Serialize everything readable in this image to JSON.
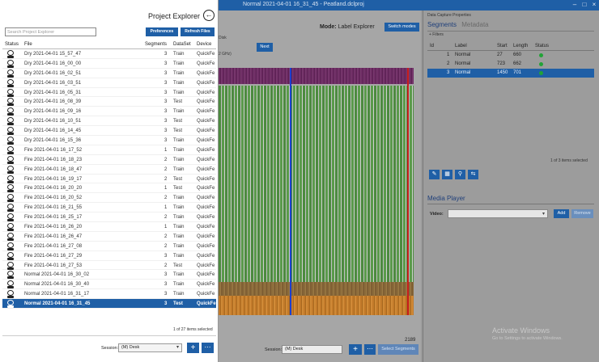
{
  "window": {
    "title": "Normal 2021-04-01 16_31_45 - Peatland.dclproj"
  },
  "center": {
    "disk_label": "Disk",
    "ghz_label": "2 GHz)",
    "next_label": "Next",
    "mode_prefix": "Mode:",
    "mode_value": "Label Explorer",
    "switch_label": "Switch modes",
    "sample_count": "2189",
    "session_label": "Session:",
    "session_value": "(M) Desk",
    "select_segments_label": "Select Segments"
  },
  "right_pane": {
    "title": "Data Capture Properties",
    "tab_segments": "Segments",
    "tab_metadata": "Metadata",
    "filters_label": "+ Filters",
    "headers": {
      "id": "Id",
      "label": "Label",
      "start": "Start",
      "length": "Length",
      "status": "Status"
    },
    "rows": [
      {
        "id": "1",
        "label": "Normal",
        "start": "27",
        "length": "660"
      },
      {
        "id": "2",
        "label": "Normal",
        "start": "723",
        "length": "662"
      },
      {
        "id": "3",
        "label": "Normal",
        "start": "1450",
        "length": "701"
      }
    ],
    "status_color": "#21a336",
    "items_selected": "1 of 3 items selected",
    "media_player_title": "Media Player",
    "video_label": "Video:",
    "add_label": "Add",
    "remove_label": "Remove",
    "activate_title": "Activate Windows",
    "activate_sub": "Go to Settings to activate Windows."
  },
  "explorer": {
    "title": "Project Explorer",
    "search_placeholder": "Search Project Explorer",
    "preferences_label": "Preferences",
    "refresh_label": "Refresh Files",
    "headers": {
      "status": "Status",
      "file": "File",
      "segments": "Segments",
      "dataset": "DataSet",
      "device": "Device"
    },
    "files": [
      {
        "name": "Dry 2021-04-01 15_57_47",
        "segments": "3",
        "dataset": "Train",
        "device": "QuickFe"
      },
      {
        "name": "Dry 2021-04-01 16_00_00",
        "segments": "3",
        "dataset": "Train",
        "device": "QuickFe"
      },
      {
        "name": "Dry 2021-04-01 16_02_51",
        "segments": "3",
        "dataset": "Train",
        "device": "QuickFe"
      },
      {
        "name": "Dry 2021-04-01 16_03_51",
        "segments": "3",
        "dataset": "Train",
        "device": "QuickFe"
      },
      {
        "name": "Dry 2021-04-01 16_05_31",
        "segments": "3",
        "dataset": "Train",
        "device": "QuickFe"
      },
      {
        "name": "Dry 2021-04-01 16_08_39",
        "segments": "3",
        "dataset": "Test",
        "device": "QuickFe"
      },
      {
        "name": "Dry 2021-04-01 16_09_16",
        "segments": "3",
        "dataset": "Train",
        "device": "QuickFe"
      },
      {
        "name": "Dry 2021-04-01 16_10_51",
        "segments": "3",
        "dataset": "Test",
        "device": "QuickFe"
      },
      {
        "name": "Dry 2021-04-01 16_14_45",
        "segments": "3",
        "dataset": "Test",
        "device": "QuickFe"
      },
      {
        "name": "Dry 2021-04-01 16_15_36",
        "segments": "3",
        "dataset": "Train",
        "device": "QuickFe"
      },
      {
        "name": "Fire 2021-04-01 16_17_52",
        "segments": "1",
        "dataset": "Train",
        "device": "QuickFe"
      },
      {
        "name": "Fire 2021-04-01 16_18_23",
        "segments": "2",
        "dataset": "Train",
        "device": "QuickFe"
      },
      {
        "name": "Fire 2021-04-01 16_18_47",
        "segments": "2",
        "dataset": "Train",
        "device": "QuickFe"
      },
      {
        "name": "Fire 2021-04-01 16_19_17",
        "segments": "2",
        "dataset": "Test",
        "device": "QuickFe"
      },
      {
        "name": "Fire 2021-04-01 16_20_20",
        "segments": "1",
        "dataset": "Test",
        "device": "QuickFe"
      },
      {
        "name": "Fire 2021-04-01 16_20_52",
        "segments": "2",
        "dataset": "Train",
        "device": "QuickFe"
      },
      {
        "name": "Fire 2021-04-01 16_21_55",
        "segments": "1",
        "dataset": "Train",
        "device": "QuickFe"
      },
      {
        "name": "Fire 2021-04-01 16_25_17",
        "segments": "2",
        "dataset": "Train",
        "device": "QuickFe"
      },
      {
        "name": "Fire 2021-04-01 16_26_20",
        "segments": "1",
        "dataset": "Train",
        "device": "QuickFe"
      },
      {
        "name": "Fire 2021-04-01 16_26_47",
        "segments": "2",
        "dataset": "Train",
        "device": "QuickFe"
      },
      {
        "name": "Fire 2021-04-01 16_27_08",
        "segments": "2",
        "dataset": "Train",
        "device": "QuickFe"
      },
      {
        "name": "Fire 2021-04-01 16_27_29",
        "segments": "3",
        "dataset": "Train",
        "device": "QuickFe"
      },
      {
        "name": "Fire 2021-04-01 16_27_53",
        "segments": "2",
        "dataset": "Test",
        "device": "QuickFe"
      },
      {
        "name": "Normal 2021-04-01 16_30_02",
        "segments": "3",
        "dataset": "Train",
        "device": "QuickFe"
      },
      {
        "name": "Normal 2021-04-01 16_30_40",
        "segments": "3",
        "dataset": "Train",
        "device": "QuickFe"
      },
      {
        "name": "Normal 2021-04-01 16_31_17",
        "segments": "3",
        "dataset": "Train",
        "device": "QuickFe"
      },
      {
        "name": "Normal 2021-04-01 16_31_45",
        "segments": "3",
        "dataset": "Test",
        "device": "QuickFe"
      }
    ],
    "selected_index": 26,
    "items_selected": "1 of 27 items selected",
    "session_label": "Session:",
    "session_value": "(M) Desk"
  },
  "colors": {
    "accent": "#1f5fa6"
  }
}
